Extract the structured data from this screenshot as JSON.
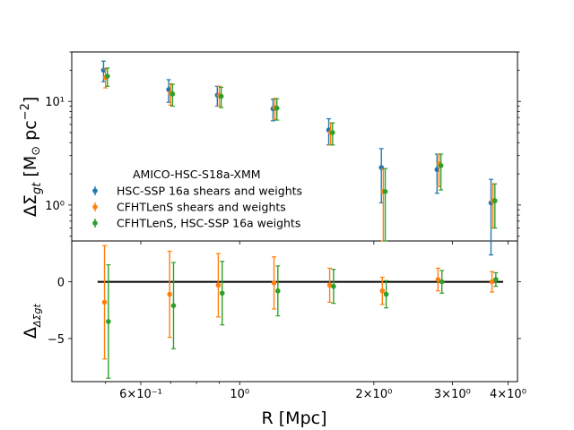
{
  "chart_data": {
    "type": "scatter",
    "x_values_mpc": [
      0.5,
      0.7,
      0.9,
      1.2,
      1.6,
      2.1,
      2.8,
      3.7
    ],
    "xlabel": "R [Mpc]",
    "xscale": "log",
    "xlim": [
      0.42,
      4.2
    ],
    "x_ticklabels": [
      "6×10⁻¹",
      "10⁰",
      "2×10⁰",
      "3×10⁰",
      "4×10⁰"
    ],
    "x_tick_values": [
      0.6,
      1.0,
      2.0,
      3.0,
      4.0
    ],
    "panels": [
      {
        "name": "profile",
        "ylabel": "ΔΣgt [M⊙ pc⁻²]",
        "ylabel_main": "ΔΣ",
        "ylabel_sub": "gt",
        "ylabel_unit": " [M",
        "ylabel_odot": "⊙",
        "ylabel_pc": " pc",
        "ylabel_exp": "−2",
        "ylabel_close": "]",
        "yscale": "log",
        "ylim": [
          0.45,
          30
        ],
        "y_ticklabels": [
          "10⁰",
          "10¹"
        ],
        "y_tick_values": [
          1,
          10
        ],
        "legend_title": "AMICO-HSC-S18a-XMM",
        "legend_position": "center-left",
        "series": [
          {
            "name": "HSC-SSP 16a shears and weights",
            "color": "#1f77b4",
            "x_factor": 0.99,
            "values": [
              20.0,
              13.0,
              11.5,
              8.5,
              5.3,
              2.3,
              2.2,
              1.05
            ],
            "err_low": [
              4.5,
              3.2,
              2.5,
              2.0,
              1.5,
              1.25,
              0.9,
              0.72
            ],
            "err_high": [
              4.5,
              3.2,
              2.5,
              2.0,
              1.5,
              1.2,
              0.9,
              0.72
            ]
          },
          {
            "name": "CFHTLenS shears and weights",
            "color": "#ff7f0e",
            "x_factor": 1.0,
            "values": [
              17.0,
              12.0,
              11.5,
              8.7,
              5.0,
              1.35,
              2.5,
              1.1
            ],
            "err_low": [
              3.5,
              2.8,
              2.5,
              2.0,
              1.2,
              0.9,
              1.0,
              0.5
            ],
            "err_high": [
              3.5,
              2.8,
              2.5,
              2.0,
              1.2,
              0.9,
              0.6,
              0.5
            ]
          },
          {
            "name": "CFHTLenS, HSC-SSP 16a weights",
            "color": "#2ca02c",
            "x_factor": 1.01,
            "values": [
              17.5,
              11.8,
              11.2,
              8.6,
              5.0,
              1.35,
              2.4,
              1.1
            ],
            "err_low": [
              3.5,
              2.8,
              2.5,
              2.0,
              1.2,
              0.9,
              1.0,
              0.5
            ],
            "err_high": [
              3.5,
              2.8,
              2.5,
              2.0,
              1.2,
              0.9,
              0.7,
              0.5
            ]
          }
        ]
      },
      {
        "name": "residual",
        "ylabel": "ΔΔΣgt",
        "ylabel_main": "Δ",
        "ylabel_sub": "ΔΣgt",
        "yscale": "linear",
        "ylim": [
          -8.8,
          3.6
        ],
        "y_ticklabels": [
          "−5",
          "0"
        ],
        "y_tick_values": [
          -5,
          0
        ],
        "reference_line": 0,
        "series": [
          {
            "name": "CFHTLenS shears and weights",
            "color": "#ff7f0e",
            "x_factor": 0.995,
            "values": [
              -1.8,
              -1.1,
              -0.3,
              -0.1,
              -0.3,
              -0.8,
              0.2,
              0.0
            ],
            "err_low": [
              5.0,
              3.8,
              2.8,
              2.3,
              1.5,
              1.2,
              1.0,
              0.9
            ],
            "err_high": [
              5.0,
              3.8,
              2.8,
              2.3,
              1.5,
              1.2,
              1.0,
              0.9
            ]
          },
          {
            "name": "CFHTLenS, HSC-SSP 16a weights",
            "color": "#2ca02c",
            "x_factor": 1.015,
            "values": [
              -3.5,
              -2.1,
              -1.0,
              -0.8,
              -0.4,
              -1.1,
              0.0,
              0.2
            ],
            "err_low": [
              5.0,
              3.8,
              2.8,
              2.2,
              1.5,
              1.2,
              1.0,
              0.6
            ],
            "err_high": [
              5.0,
              3.8,
              2.8,
              2.2,
              1.5,
              1.2,
              1.0,
              0.6
            ]
          }
        ]
      }
    ]
  }
}
